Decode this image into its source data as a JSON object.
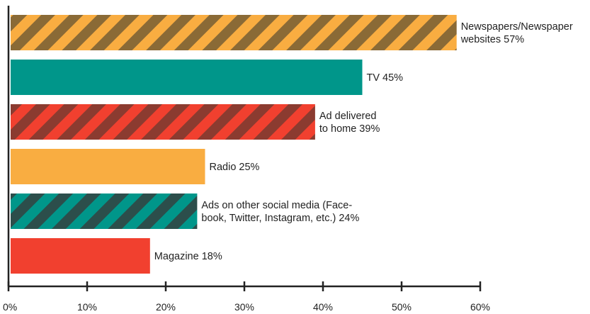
{
  "chart_data": {
    "type": "bar",
    "orientation": "horizontal",
    "categories": [
      "Newspapers/Newspaper websites",
      "TV",
      "Ad delivered to home",
      "Radio",
      "Ads on other social media (Face-book, Twitter, Instagram, etc.)",
      "Magazine"
    ],
    "values": [
      57,
      45,
      39,
      25,
      24,
      18
    ],
    "labels": [
      [
        "Newspapers/Newspaper",
        "websites 57%"
      ],
      [
        "TV 45%"
      ],
      [
        "Ad delivered",
        "to home 39%"
      ],
      [
        "Radio 25%"
      ],
      [
        "Ads on other social media (Face-",
        "book, Twitter, Instagram, etc.) 24%"
      ],
      [
        "Magazine 18%"
      ]
    ],
    "bar_styles": [
      {
        "color": "#f9ad41",
        "pattern": "stripes",
        "stripe_color": "#8a6a36"
      },
      {
        "color": "#00968a",
        "pattern": "solid"
      },
      {
        "color": "#f1402f",
        "pattern": "stripes",
        "stripe_color": "#8b3b30"
      },
      {
        "color": "#f9ad41",
        "pattern": "solid"
      },
      {
        "color": "#00968a",
        "pattern": "stripes",
        "stripe_color": "#2c4e4b"
      },
      {
        "color": "#f1402f",
        "pattern": "solid"
      }
    ],
    "xlim": [
      0,
      60
    ],
    "xticks": [
      0,
      10,
      20,
      30,
      40,
      50,
      60
    ],
    "xtick_labels": [
      "0%",
      "10%",
      "20%",
      "30%",
      "40%",
      "50%",
      "60%"
    ],
    "title": "",
    "xlabel": "",
    "ylabel": "",
    "grid": false,
    "legend": "none",
    "axis_color": "#222222"
  }
}
